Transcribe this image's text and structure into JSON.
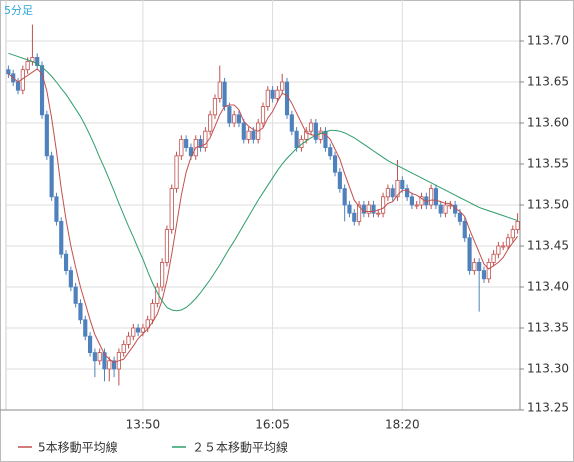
{
  "chart_data": {
    "type": "candlestick",
    "title": "5分足",
    "categories": [
      null,
      null,
      null,
      null,
      null,
      null,
      null,
      null,
      null,
      null,
      null,
      null,
      null,
      null,
      null,
      null,
      null,
      null,
      null,
      null,
      null,
      null,
      null,
      null,
      null,
      null,
      null,
      null,
      "13:50",
      null,
      null,
      null,
      null,
      null,
      null,
      null,
      null,
      null,
      null,
      null,
      null,
      null,
      null,
      null,
      null,
      null,
      null,
      null,
      null,
      null,
      null,
      null,
      null,
      null,
      null,
      "16:05",
      null,
      null,
      null,
      null,
      null,
      null,
      null,
      null,
      null,
      null,
      null,
      null,
      null,
      null,
      null,
      null,
      null,
      null,
      null,
      null,
      null,
      null,
      null,
      null,
      null,
      null,
      "18:20",
      null,
      null,
      null,
      null,
      null,
      null,
      null,
      null,
      null,
      null,
      null,
      null,
      null,
      null,
      null,
      null,
      null,
      null,
      null,
      null,
      null,
      null,
      null,
      null
    ],
    "up_color": "#c0504d",
    "down_color": "#4f81bd",
    "ohlc": [
      [
        113.665,
        113.67,
        113.655,
        113.66
      ],
      [
        113.66,
        113.665,
        113.645,
        113.65
      ],
      [
        113.65,
        113.655,
        113.635,
        113.64
      ],
      [
        113.64,
        113.67,
        113.635,
        113.665
      ],
      [
        113.665,
        113.68,
        113.66,
        113.675
      ],
      [
        113.675,
        113.72,
        113.67,
        113.68
      ],
      [
        113.68,
        113.685,
        113.665,
        113.67
      ],
      [
        113.67,
        113.675,
        113.605,
        113.61
      ],
      [
        113.61,
        113.615,
        113.555,
        113.56
      ],
      [
        113.56,
        113.565,
        113.505,
        113.51
      ],
      [
        113.51,
        113.515,
        113.475,
        113.48
      ],
      [
        113.48,
        113.485,
        113.435,
        113.44
      ],
      [
        113.44,
        113.445,
        113.415,
        113.42
      ],
      [
        113.42,
        113.425,
        113.395,
        113.4
      ],
      [
        113.4,
        113.405,
        113.375,
        113.38
      ],
      [
        113.38,
        113.385,
        113.355,
        113.36
      ],
      [
        113.36,
        113.365,
        113.335,
        113.34
      ],
      [
        113.34,
        113.345,
        113.315,
        113.32
      ],
      [
        113.32,
        113.325,
        113.29,
        113.31
      ],
      [
        113.31,
        113.325,
        113.305,
        113.32
      ],
      [
        113.32,
        113.325,
        113.285,
        113.3
      ],
      [
        113.3,
        113.315,
        113.285,
        113.31
      ],
      [
        113.31,
        113.315,
        113.29,
        113.3
      ],
      [
        113.3,
        113.325,
        113.28,
        113.32
      ],
      [
        113.32,
        113.335,
        113.315,
        113.33
      ],
      [
        113.33,
        113.345,
        113.325,
        113.34
      ],
      [
        113.34,
        113.355,
        113.335,
        113.35
      ],
      [
        113.35,
        113.355,
        113.34,
        113.345
      ],
      [
        113.345,
        113.355,
        113.34,
        113.35
      ],
      [
        113.35,
        113.365,
        113.345,
        113.36
      ],
      [
        113.36,
        113.385,
        113.355,
        113.38
      ],
      [
        113.38,
        113.405,
        113.375,
        113.4
      ],
      [
        113.4,
        113.435,
        113.395,
        113.43
      ],
      [
        113.43,
        113.475,
        113.425,
        113.47
      ],
      [
        113.47,
        113.525,
        113.465,
        113.52
      ],
      [
        113.52,
        113.565,
        113.515,
        113.56
      ],
      [
        113.56,
        113.585,
        113.555,
        113.58
      ],
      [
        113.58,
        113.585,
        113.565,
        113.57
      ],
      [
        113.57,
        113.575,
        113.555,
        113.56
      ],
      [
        113.56,
        113.585,
        113.555,
        113.58
      ],
      [
        113.58,
        113.585,
        113.565,
        113.57
      ],
      [
        113.57,
        113.595,
        113.565,
        113.59
      ],
      [
        113.59,
        113.615,
        113.585,
        113.61
      ],
      [
        113.61,
        113.635,
        113.605,
        113.63
      ],
      [
        113.63,
        113.67,
        113.625,
        113.65
      ],
      [
        113.65,
        113.655,
        113.615,
        113.62
      ],
      [
        113.62,
        113.625,
        113.595,
        113.6
      ],
      [
        113.6,
        113.615,
        113.595,
        113.61
      ],
      [
        113.61,
        113.615,
        113.595,
        113.6
      ],
      [
        113.6,
        113.605,
        113.575,
        113.58
      ],
      [
        113.58,
        113.595,
        113.575,
        113.59
      ],
      [
        113.59,
        113.595,
        113.575,
        113.58
      ],
      [
        113.58,
        113.605,
        113.575,
        113.6
      ],
      [
        113.6,
        113.625,
        113.595,
        113.62
      ],
      [
        113.62,
        113.645,
        113.615,
        113.64
      ],
      [
        113.64,
        113.645,
        113.625,
        113.63
      ],
      [
        113.63,
        113.645,
        113.625,
        113.64
      ],
      [
        113.64,
        113.66,
        113.635,
        113.65
      ],
      [
        113.65,
        113.655,
        113.605,
        113.61
      ],
      [
        113.61,
        113.615,
        113.585,
        113.59
      ],
      [
        113.59,
        113.595,
        113.565,
        113.57
      ],
      [
        113.57,
        113.585,
        113.565,
        113.58
      ],
      [
        113.58,
        113.595,
        113.575,
        113.59
      ],
      [
        113.59,
        113.605,
        113.585,
        113.6
      ],
      [
        113.6,
        113.605,
        113.575,
        113.58
      ],
      [
        113.58,
        113.595,
        113.575,
        113.59
      ],
      [
        113.59,
        113.595,
        113.565,
        113.57
      ],
      [
        113.57,
        113.575,
        113.555,
        113.56
      ],
      [
        113.56,
        113.565,
        113.535,
        113.54
      ],
      [
        113.54,
        113.545,
        113.515,
        113.52
      ],
      [
        113.52,
        113.525,
        113.48,
        113.5
      ],
      [
        113.5,
        113.505,
        113.485,
        113.49
      ],
      [
        113.49,
        113.495,
        113.475,
        113.48
      ],
      [
        113.48,
        113.505,
        113.475,
        113.5
      ],
      [
        113.5,
        113.505,
        113.485,
        113.49
      ],
      [
        113.49,
        113.505,
        113.485,
        113.5
      ],
      [
        113.5,
        113.505,
        113.485,
        113.49
      ],
      [
        113.49,
        113.495,
        113.485,
        113.49
      ],
      [
        113.49,
        113.515,
        113.485,
        113.51
      ],
      [
        113.51,
        113.525,
        113.505,
        113.52
      ],
      [
        113.52,
        113.525,
        113.505,
        113.51
      ],
      [
        113.51,
        113.555,
        113.505,
        113.53
      ],
      [
        113.53,
        113.535,
        113.515,
        113.52
      ],
      [
        113.52,
        113.525,
        113.505,
        113.51
      ],
      [
        113.51,
        113.515,
        113.495,
        113.5
      ],
      [
        113.5,
        113.505,
        113.495,
        113.5
      ],
      [
        113.5,
        113.515,
        113.495,
        113.51
      ],
      [
        113.51,
        113.515,
        113.495,
        113.5
      ],
      [
        113.5,
        113.525,
        113.495,
        113.52
      ],
      [
        113.52,
        113.525,
        113.495,
        113.5
      ],
      [
        113.5,
        113.505,
        113.485,
        113.49
      ],
      [
        113.49,
        113.505,
        113.485,
        113.5
      ],
      [
        113.5,
        113.505,
        113.495,
        113.5
      ],
      [
        113.5,
        113.505,
        113.485,
        113.49
      ],
      [
        113.49,
        113.495,
        113.475,
        113.48
      ],
      [
        113.48,
        113.485,
        113.455,
        113.46
      ],
      [
        113.46,
        113.465,
        113.415,
        113.42
      ],
      [
        113.42,
        113.435,
        113.415,
        113.43
      ],
      [
        113.43,
        113.435,
        113.37,
        113.42
      ],
      [
        113.42,
        113.425,
        113.405,
        113.41
      ],
      [
        113.41,
        113.435,
        113.405,
        113.43
      ],
      [
        113.43,
        113.445,
        113.425,
        113.44
      ],
      [
        113.44,
        113.455,
        113.435,
        113.45
      ],
      [
        113.45,
        113.455,
        113.445,
        113.45
      ],
      [
        113.45,
        113.465,
        113.445,
        113.46
      ],
      [
        113.46,
        113.475,
        113.455,
        113.47
      ],
      [
        113.47,
        113.49,
        113.465,
        113.48
      ]
    ],
    "series": [
      {
        "name": "5本移動平均線",
        "color": "#c0504d",
        "values": [
          113.66,
          113.655,
          113.65,
          113.654,
          113.658,
          113.662,
          113.666,
          113.66,
          113.639,
          113.606,
          113.566,
          113.52,
          113.482,
          113.45,
          113.424,
          113.4,
          113.38,
          113.36,
          113.342,
          113.33,
          113.318,
          113.312,
          113.308,
          113.31,
          113.312,
          113.32,
          113.328,
          113.337,
          113.343,
          113.349,
          113.357,
          113.367,
          113.384,
          113.408,
          113.44,
          113.476,
          113.512,
          113.54,
          113.558,
          113.57,
          113.572,
          113.574,
          113.582,
          113.596,
          113.61,
          113.62,
          113.622,
          113.622,
          113.616,
          113.602,
          113.596,
          113.592,
          113.59,
          113.594,
          113.606,
          113.614,
          113.626,
          113.636,
          113.634,
          113.624,
          113.612,
          113.6,
          113.588,
          113.586,
          113.584,
          113.588,
          113.586,
          113.58,
          113.568,
          113.556,
          113.538,
          113.522,
          113.506,
          113.498,
          113.492,
          113.492,
          113.492,
          113.494,
          113.496,
          113.502,
          113.504,
          113.512,
          113.518,
          113.518,
          113.514,
          113.512,
          113.508,
          113.504,
          113.506,
          113.506,
          113.504,
          113.502,
          113.502,
          113.496,
          113.492,
          113.486,
          113.47,
          113.456,
          113.442,
          113.428,
          113.422,
          113.426,
          113.43,
          113.436,
          113.446,
          113.454,
          113.462
        ]
      },
      {
        "name": "２５本移動平均線",
        "color": "#2e9e6b",
        "values": [
          113.685,
          113.683,
          113.681,
          113.679,
          113.677,
          113.675,
          113.672,
          113.668,
          113.663,
          113.657,
          113.65,
          113.642,
          113.635,
          113.626,
          113.617,
          113.608,
          113.597,
          113.585,
          113.572,
          113.558,
          113.545,
          113.531,
          113.517,
          113.502,
          113.488,
          113.474,
          113.461,
          113.447,
          113.434,
          113.419,
          113.405,
          113.393,
          113.383,
          113.375,
          113.372,
          113.371,
          113.372,
          113.375,
          113.38,
          113.386,
          113.393,
          113.401,
          113.409,
          113.418,
          113.427,
          113.437,
          113.447,
          113.456,
          113.466,
          113.476,
          113.486,
          113.496,
          113.506,
          113.515,
          113.524,
          113.533,
          113.542,
          113.55,
          113.557,
          113.563,
          113.569,
          113.574,
          113.578,
          113.582,
          113.585,
          113.587,
          113.589,
          113.591,
          113.591,
          113.59,
          113.588,
          113.585,
          113.582,
          113.578,
          113.574,
          113.57,
          113.566,
          113.562,
          113.558,
          113.554,
          113.551,
          113.548,
          113.545,
          113.542,
          113.539,
          113.536,
          113.533,
          113.53,
          113.527,
          113.524,
          113.521,
          113.518,
          113.515,
          113.512,
          113.509,
          113.506,
          113.503,
          113.5,
          113.497,
          113.495,
          113.493,
          113.491,
          113.489,
          113.487,
          113.485,
          113.483,
          113.481
        ]
      }
    ],
    "ylim": [
      113.25,
      113.75
    ],
    "yticks": [
      {
        "value": 113.25,
        "label": "113.25"
      },
      {
        "value": 113.3,
        "label": "113.30"
      },
      113.35,
      {
        "value": 113.4,
        "label": "113.40"
      },
      113.45,
      {
        "value": 113.5,
        "label": "113.50"
      },
      113.55,
      {
        "value": 113.6,
        "label": "113.60"
      },
      113.65,
      {
        "value": 113.7,
        "label": "113.70"
      }
    ],
    "grid": true
  }
}
